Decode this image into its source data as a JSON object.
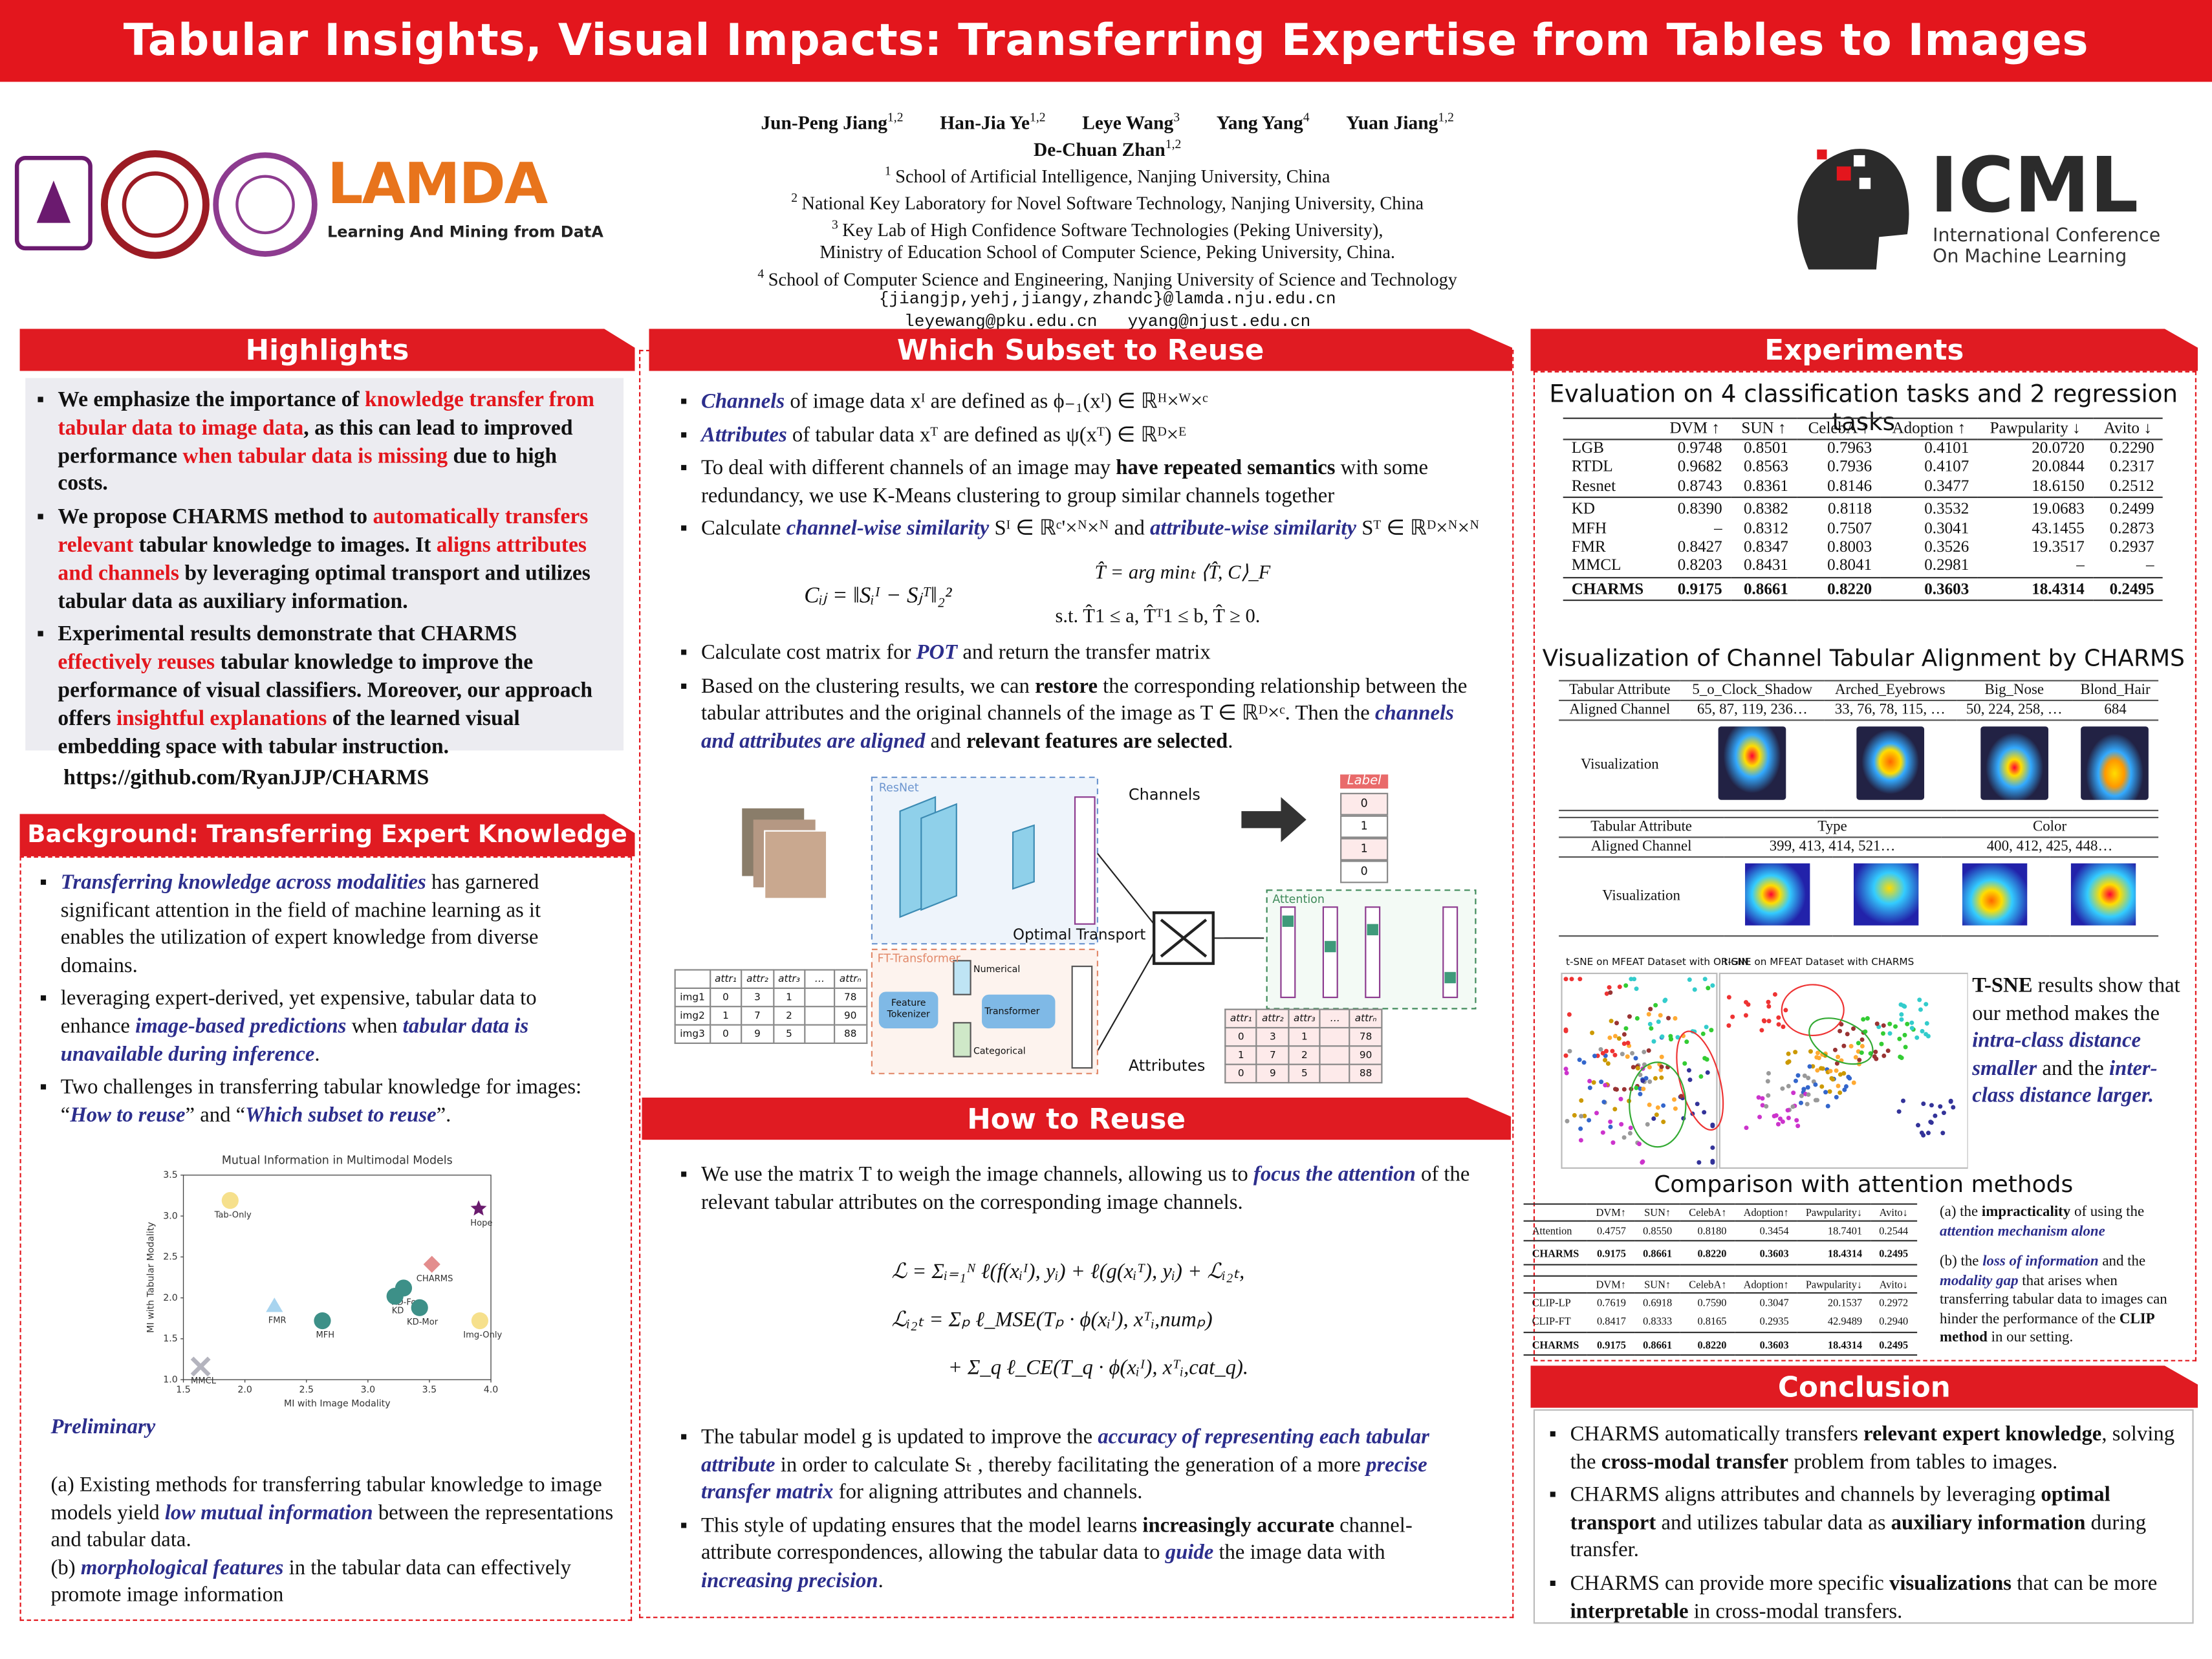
{
  "header": {
    "title": "Tabular Insights, Visual Impacts: Transferring Expertise from Tables to Images"
  },
  "authors": {
    "names": [
      {
        "name": "Jun-Peng Jiang",
        "sup": "1,2"
      },
      {
        "name": "Han-Jia Ye",
        "sup": "1,2"
      },
      {
        "name": "Leye Wang",
        "sup": "3"
      },
      {
        "name": "Yang Yang",
        "sup": "4"
      },
      {
        "name": "Yuan Jiang",
        "sup": "1,2"
      },
      {
        "name": "De-Chuan Zhan",
        "sup": "1,2"
      }
    ],
    "affiliations": [
      {
        "sup": "1",
        "text": "School of Artificial Intelligence, Nanjing University, China"
      },
      {
        "sup": "2",
        "text": "National Key Laboratory for Novel Software Technology, Nanjing University, China"
      },
      {
        "sup": "3",
        "text": "Key Lab of High Confidence Software Technologies (Peking University),"
      },
      {
        "text": "Ministry of Education School of Computer Science, Peking University, China."
      },
      {
        "sup": "4",
        "text": "School of Computer Science and Engineering, Nanjing University of Science and Technology"
      }
    ],
    "emails": [
      "{jiangjp,yehj,jiangy,zhandc}@lamda.nju.edu.cn",
      "leyewang@pku.edu.cn   yyang@njust.edu.cn"
    ]
  },
  "logos": {
    "lamda": "LAMDA",
    "lamda_sub": "Learning And Mining from DatA",
    "icml": "ICML",
    "icml_sub": [
      "International Conference",
      "On Machine Learning"
    ]
  },
  "highlights": {
    "heading": "Highlights",
    "items": [
      [
        "We emphasize the importance of ",
        "knowledge transfer from tabular data to image data",
        ", as this can lead to improved performance ",
        "when tabular data is missing",
        " due to high costs."
      ],
      [
        "We propose CHARMS method to ",
        "automatically transfers relevant",
        " tabular knowledge to images. It ",
        "aligns attributes and channels",
        " by leveraging optimal transport and utilizes tabular data as auxiliary information."
      ],
      [
        "Experimental results demonstrate that CHARMS ",
        "effectively reuses",
        " tabular knowledge to improve the performance of visual classifiers. Moreover, our approach offers ",
        "insightful explanations",
        " of the learned visual embedding space with tabular instruction."
      ]
    ],
    "link": "https://github.com/RyanJJP/CHARMS"
  },
  "background": {
    "heading": "Background: Transferring Expert Knowledge",
    "items": [
      [
        "Transferring knowledge across modalities",
        " has garnered significant attention in  the field of machine learning as it enables the utilization of expert knowledge from diverse domains."
      ],
      [
        "leveraging expert-derived, yet expensive, tabular data to enhance ",
        "image-based predictions",
        " when ",
        "tabular data is unavailable during inference",
        "."
      ],
      [
        "Two challenges in transferring tabular knowledge for images: “",
        "How to reuse",
        "” and “",
        "Which subset to reuse",
        "”."
      ]
    ],
    "preliminary": {
      "heading": "Preliminary",
      "items": [
        [
          "(a) Existing methods for transferring tabular knowledge to image models yield ",
          "low mutual information",
          " between the representations and tabular data."
        ],
        [
          "(b) ",
          "morphological features",
          " in the tabular data can effectively promote image information"
        ]
      ]
    }
  },
  "chart_data": {
    "type": "scatter",
    "title": "Mutual Information in Multimodal Models",
    "x_label": "MI with Image Modality",
    "y_label": "MI with Tabular Modality",
    "xlim": [
      1.5,
      4.0
    ],
    "ylim": [
      1.0,
      3.5
    ],
    "xticks": [
      1.5,
      {
        "value": 2,
        "label": "2.0"
      },
      2.5,
      {
        "value": 3,
        "label": "3.0"
      },
      3.5,
      {
        "value": 4,
        "label": "4.0"
      }
    ],
    "yticks": [
      {
        "value": 1,
        "label": "1.0"
      },
      1.5,
      {
        "value": 2,
        "label": "2.0"
      },
      2.5,
      {
        "value": 3,
        "label": "3.0"
      },
      3.5
    ],
    "points": [
      {
        "name": "Tab-Only",
        "x": 1.88,
        "y": 3.19,
        "color": "#f6e08c",
        "marker": "circle"
      },
      {
        "name": "Hope",
        "x": 3.9,
        "y": 3.09,
        "color": "#6a1b6e",
        "marker": "star"
      },
      {
        "name": "CHARMS",
        "x": 3.52,
        "y": 2.41,
        "color": "#e38d8d",
        "marker": "diamond"
      },
      {
        "name": "KD-Fou",
        "x": 3.29,
        "y": 2.12,
        "color": "#3d9088",
        "marker": "circle"
      },
      {
        "name": "KD",
        "x": 3.22,
        "y": 2.02,
        "color": "#3d9088",
        "marker": "circle"
      },
      {
        "name": "KD-Mor",
        "x": 3.42,
        "y": 1.88,
        "color": "#3d9088",
        "marker": "circle"
      },
      {
        "name": "Img-Only",
        "x": 3.91,
        "y": 1.72,
        "color": "#f6e08c",
        "marker": "circle"
      },
      {
        "name": "FMR",
        "x": 2.24,
        "y": 1.9,
        "color": "#a8d4ef",
        "marker": "triangle"
      },
      {
        "name": "MFH",
        "x": 2.63,
        "y": 1.72,
        "color": "#3d9088",
        "marker": "circle"
      },
      {
        "name": "MMCL",
        "x": 1.64,
        "y": 1.16,
        "color": "#b4b4be",
        "marker": "x"
      }
    ]
  },
  "subset": {
    "heading": "Which Subset to Reuse",
    "items": [
      [
        "Channels",
        " of image data xᴵ are defined as ϕ₋₁(xᴵ) ∈ ℝᴴ×ᵂ×ᶜ"
      ],
      [
        "Attributes",
        " of tabular data xᵀ are defined as ψ(xᵀ) ∈ ℝᴰ×ᴱ"
      ],
      [
        "To deal with different channels of an image may ",
        "have repeated semantics",
        " with some redundancy, we use K-Means clustering to group similar channels together"
      ],
      [
        "Calculate ",
        "channel-wise similarity",
        " Sᴵ ∈ ℝᶜ'×ᴺ×ᴺ and ",
        "attribute-wise similarity",
        " Sᵀ ∈ ℝᴰ×ᴺ×ᴺ"
      ]
    ],
    "formulas": [
      "Cᵢⱼ = ‖Sᵢᴵ − Sⱼᵀ‖₂²",
      "T̂ = arg minₜ ⟨T̂, C⟩_F",
      "s.t.   T̂1 ≤ a,   T̂ᵀ1 ≤ b,   T̂ ≥ 0."
    ],
    "items2": [
      [
        "Calculate cost matrix for ",
        "POT",
        " and return the transfer matrix"
      ],
      [
        "Based on the clustering results, we can ",
        "restore",
        " the corresponding relationship between the tabular attributes and the original channels of the image as T ∈ ℝᴰ×ᶜ. Then the ",
        "channels and attributes are aligned",
        " and ",
        "relevant features are selected",
        "."
      ]
    ]
  },
  "diagram": {
    "resnet": "ResNet",
    "channels": "Channels",
    "label_head": "Label",
    "labels": [
      "0",
      "1",
      "1",
      "0"
    ],
    "attention": "Attention",
    "optimal_transport": "Optimal  Transport",
    "ft_transformer": "FT-Transformer",
    "numerical": "Numerical",
    "feature_tokenizer": "Feature Tokenizer",
    "transformer": "Transformer",
    "categorical": "Categorical",
    "attributes": "Attributes",
    "input_table": {
      "columns": [
        "attr₁",
        "attr₂",
        "attr₃",
        "…",
        "attrₙ"
      ],
      "rows": [
        [
          "img1",
          "0",
          "3",
          "1",
          null,
          "78"
        ],
        [
          "img2",
          "1",
          "7",
          "2",
          null,
          "90"
        ],
        [
          "img3",
          "0",
          "9",
          "5",
          null,
          "88"
        ]
      ]
    },
    "output_table": {
      "columns": [
        "attr₁",
        "attr₂",
        "attr₃",
        "…",
        "attrₙ"
      ],
      "rows": [
        [
          "0",
          "3",
          "1",
          null,
          "78"
        ],
        [
          "1",
          "7",
          "2",
          null,
          "90"
        ],
        [
          "0",
          "9",
          "5",
          null,
          "88"
        ]
      ]
    }
  },
  "reuse": {
    "heading": "How to Reuse",
    "items": [
      [
        "We use the matrix T to weigh the image channels, allowing us to ",
        "focus the attention",
        " of the relevant tabular attributes on the corresponding image channels."
      ]
    ],
    "formulas": [
      "ℒ = Σᵢ₌₁ᴺ ℓ(f(xᵢᴵ), yᵢ) + ℓ(g(xᵢᵀ), yᵢ) + ℒᵢ₂ₜ,",
      "ℒᵢ₂ₜ = Σₚ ℓ_MSE(Tₚ · ϕ(xᵢᴵ), xᵀᵢ,numₚ)",
      "+ Σ_q ℓ_CE(T_q · ϕ(xᵢᴵ), xᵀᵢ,cat_q)."
    ],
    "items2": [
      [
        "The tabular model g is updated to improve the ",
        "accuracy of representing each tabular attribute",
        " in order to calculate Sₜ , thereby facilitating the generation of a more ",
        "precise transfer matrix",
        " for aligning attributes and channels."
      ],
      [
        "This style of updating ensures that the model learns ",
        "increasingly accurate",
        " channel-attribute correspondences, allowing the tabular data to ",
        "guide",
        " the image data with ",
        "increasing precision",
        "."
      ]
    ]
  },
  "experiments": {
    "heading": "Experiments",
    "eval_title": "Evaluation on 4 classification tasks and 2 regression tasks",
    "eval_table": {
      "columns": [
        "DVM ↑",
        "SUN ↑",
        "CelebA ↑",
        "Adoption ↑",
        "Pawpularity ↓",
        "Avito ↓"
      ],
      "rows": [
        [
          "LGB",
          "0.9748",
          "0.8501",
          "0.7963",
          "0.4101",
          "20.0720",
          "0.2290"
        ],
        [
          "RTDL",
          "0.9682",
          "0.8563",
          "0.7936",
          "0.4107",
          "20.0844",
          "0.2317"
        ],
        [
          "Resnet",
          "0.8743",
          "0.8361",
          "0.8146",
          "0.3477",
          "18.6150",
          "0.2512"
        ],
        [
          "KD",
          "0.8390",
          "0.8382",
          "0.8118",
          "0.3532",
          "19.0683",
          "0.2499"
        ],
        [
          "MFH",
          "–",
          "0.8312",
          "0.7507",
          "0.3041",
          "43.1455",
          "0.2873"
        ],
        [
          "FMR",
          "0.8427",
          "0.8347",
          "0.8003",
          "0.3526",
          "19.3517",
          "0.2937"
        ],
        [
          "MMCL",
          "0.8203",
          "0.8431",
          "0.8041",
          "0.2981",
          "–",
          "–"
        ],
        [
          "CHARMS",
          "0.9175",
          "0.8661",
          "0.8220",
          "0.3603",
          "18.4314",
          "0.2495"
        ]
      ]
    },
    "viz_title": "Visualization of Channel Tabular Alignment by CHARMS",
    "alignment": {
      "attribute_label": "Tabular Attribute",
      "channel_label": "Aligned Channel",
      "viz_label": "Visualization",
      "celeba_attributes": [
        "5_o_Clock_Shadow",
        "Arched_Eyebrows",
        "Big_Nose",
        "Blond_Hair"
      ],
      "celeba_channels": [
        "65, 87, 119, 236…",
        "33, 76, 78, 115, …",
        "50, 224, 258, …",
        "684"
      ],
      "other_attributes": [
        "Type",
        "Color"
      ],
      "other_channels": [
        "399, 413, 414, 521…",
        "400, 412, 425, 448…"
      ]
    },
    "tsne_titles": [
      "t-SNE on MFEAT Dataset with ORIGIN",
      "t-SNE on MFEAT Dataset with CHARMS"
    ],
    "tsne_text": [
      "T-SNE",
      " results show that our method makes the ",
      "intra-class distance smaller",
      " and the ",
      "inter-class distance larger."
    ],
    "cmp_title": "Comparison with attention methods",
    "cmp_table1": {
      "columns": [
        "DVM↑",
        "SUN↑",
        "CelebA↑",
        "Adoption↑",
        "Pawpularity↓",
        "Avito↓"
      ],
      "rows": [
        [
          "Attention",
          "0.4757",
          "0.8550",
          "0.8180",
          "0.3454",
          "18.7401",
          "0.2544"
        ],
        [
          "CHARMS",
          "0.9175",
          "0.8661",
          "0.8220",
          "0.3603",
          "18.4314",
          "0.2495"
        ]
      ]
    },
    "cmp_table2": {
      "columns": [
        "DVM↑",
        "SUN↑",
        "CelebA↑",
        "Adoption↑",
        "Pawpularity↓",
        "Avito↓"
      ],
      "rows": [
        [
          "CLIP-LP",
          "0.7619",
          "0.6918",
          "0.7590",
          "0.3047",
          "20.1537",
          "0.2972"
        ],
        [
          "CLIP-FT",
          "0.8417",
          "0.8333",
          "0.8165",
          "0.2935",
          "42.9489",
          "0.2940"
        ],
        [
          "CHARMS",
          "0.9175",
          "0.8661",
          "0.8220",
          "0.3603",
          "18.4314",
          "0.2495"
        ]
      ]
    },
    "notes": [
      [
        "(a) the ",
        "impracticality",
        " of using the ",
        "attention mechanism alone"
      ],
      [
        "(b) the ",
        "loss of information",
        " and the ",
        "modality gap",
        " that arises when transferring tabular data to images can hinder the performance of the ",
        "CLIP method",
        " in our setting."
      ]
    ]
  },
  "conclusion": {
    "heading": "Conclusion",
    "items": [
      [
        "CHARMS automatically transfers ",
        "relevant expert knowledge",
        ", solving the ",
        "cross-modal transfer",
        " problem from tables to images."
      ],
      [
        "CHARMS aligns attributes and channels by leveraging ",
        "optimal transport",
        " and utilizes tabular data as ",
        "auxiliary information",
        " during transfer."
      ],
      [
        "CHARMS can provide more specific ",
        "visualizations",
        " that can be more ",
        "interpretable",
        " in cross-modal transfers."
      ]
    ]
  }
}
